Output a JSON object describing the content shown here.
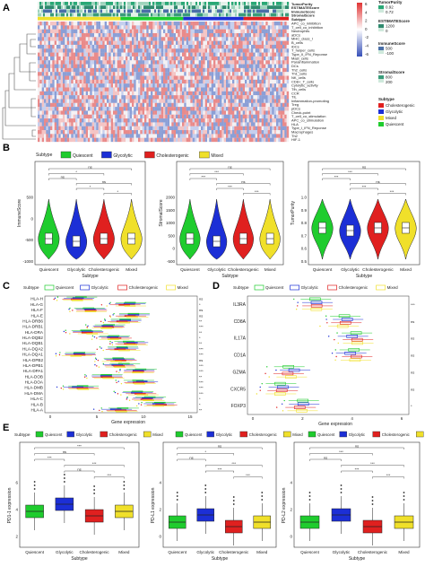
{
  "panels": {
    "A": {
      "letter": "A",
      "annotation_rows": [
        "TumorPurity",
        "ESTIMATEScore",
        "ImmuneScore",
        "StromalScore",
        "Subtype"
      ],
      "rows": [
        "APC_co_inhibition",
        "T_cell_co_inhibition",
        "Neutrophils",
        "aDCs",
        "MHC_class_I",
        "B_cells",
        "iDCs",
        "T_helper_cells",
        "Type_II_IFN_Reponse",
        "Mast_cells",
        "Parainflammation",
        "DCs",
        "Th2_cells",
        "Th1_cells",
        "NK_cells",
        "CD8+_T_cells",
        "Cytolytic_activity",
        "Tfh_cells",
        "CCR",
        "TIL",
        "Inflammation-promoting",
        "Treg",
        "pDCs",
        "Check-point",
        "T_cell_co_stimulation",
        "APC_co_stimulation",
        "HLA",
        "Type_I_IFN_Reponse",
        "Macrophages",
        "Th2",
        "HIF-1"
      ],
      "heat_scale": [
        "6",
        "4",
        "2",
        "0",
        "-2",
        "-4",
        "-6"
      ],
      "legends": [
        {
          "title": "TumorPurity",
          "ticks": [
            "0.92",
            "0.72"
          ]
        },
        {
          "title": "ESTIMATEScore",
          "ticks": [
            "1200",
            "0"
          ]
        },
        {
          "title": "ImmuneScore",
          "ticks": [
            "500",
            "-100"
          ]
        },
        {
          "title": "StromalScore",
          "ticks": [
            "800",
            "200"
          ]
        },
        {
          "title": "Subtype",
          "items": [
            "Cholesterogenic",
            "Glycolytic",
            "Mixed",
            "Quiescent"
          ]
        }
      ]
    },
    "B": {
      "letter": "B",
      "legend_title": "Subtype",
      "xlabel": "Subtype",
      "categories": [
        "Quiescent",
        "Glycolytic",
        "Cholesterogenic",
        "Mixed"
      ],
      "subplots": [
        {
          "ylabel": "ImmuneScore",
          "yticks": [
            "500",
            "0",
            "-500",
            "-1000"
          ],
          "sig": [
            "ns",
            "*",
            "ns",
            "ns",
            "*",
            "*"
          ]
        },
        {
          "ylabel": "StromalScore",
          "yticks": [
            "2000",
            "1500",
            "1000",
            "500",
            "0",
            "-500"
          ],
          "sig": [
            "ns",
            "***",
            "***",
            "ns",
            "***",
            "***"
          ]
        },
        {
          "ylabel": "TumorPurity",
          "yticks": [
            "1.0",
            "0.9",
            "0.8",
            "0.7",
            "0.6",
            "0.5"
          ],
          "sig": [
            "ns",
            "***",
            "***",
            "ns",
            "***",
            "***"
          ]
        }
      ]
    },
    "C": {
      "letter": "C",
      "legend_title": "Subtype",
      "genes": [
        "HLA-H",
        "HLA-G",
        "HLA-F",
        "HLA-E",
        "HLA-DRB6",
        "HLA-DRB1",
        "HLA-DRA",
        "HLA-DQB2",
        "HLA-DQB1",
        "HLA-DQA2",
        "HLA-DQA1",
        "HLA-DPB2",
        "HLA-DPB1",
        "HLA-DPA1",
        "HLA-DOB",
        "HLA-DOA",
        "HLA-DMB",
        "HLA-DMA",
        "HLA-C",
        "HLA-B",
        "HLA-A"
      ],
      "sig": [
        "ns",
        "*",
        "ns",
        "ns",
        "**",
        "***",
        "**",
        "*",
        "**",
        "***",
        "***",
        "ns",
        "***",
        "***",
        "**",
        "***",
        "***",
        "***",
        "*",
        "*",
        "**"
      ],
      "xticks": [
        "0",
        "5",
        "10",
        "15"
      ],
      "xlabel": "Gene expression"
    },
    "D": {
      "letter": "D",
      "legend_title": "Subtype",
      "genes": [
        "IL3RA",
        "CD8A",
        "IL17A",
        "CD1A",
        "GZMA",
        "CXCR5",
        "FOXP3"
      ],
      "sig": [
        "***",
        "ns",
        "ns",
        "ns",
        "ns",
        "ns",
        "*"
      ],
      "xticks": [
        "0",
        "2",
        "4",
        "6"
      ],
      "xlabel": "Gene expression"
    },
    "E": {
      "letter": "E",
      "legend_title": "Subtype",
      "xlabel": "Subtype",
      "categories": [
        "Quiescent",
        "Glycolytic",
        "Cholesterogenic",
        "Mixed"
      ],
      "subplots": [
        {
          "ylabel": "PD1-1 expression",
          "yticks": [
            "6",
            "4",
            "2"
          ],
          "sig": [
            "***",
            "ns",
            "***",
            "***",
            "ns",
            "***"
          ]
        },
        {
          "ylabel": "PD-L1 expression",
          "yticks": [
            "4",
            "2",
            "0"
          ],
          "sig": [
            "ns",
            "*",
            "ns",
            "***",
            "***",
            "***"
          ]
        },
        {
          "ylabel": "PD-L2 expression",
          "yticks": [
            "4",
            "2",
            "0"
          ],
          "sig": [
            "ns",
            "***",
            "ns",
            "***",
            "***",
            "***"
          ]
        }
      ]
    }
  },
  "colors": {
    "quiescent": "#1fcc2e",
    "glycolytic": "#1c2fd6",
    "cholesterogenic": "#e0201f",
    "mixed": "#f0e02a",
    "heat_high": "#e03333",
    "heat_low": "#3650b8",
    "tumor_purity": "#2aa876",
    "estimate": "#2f8a6e",
    "immune": "#4a6fa8",
    "stromal": "#3a9c7a"
  }
}
